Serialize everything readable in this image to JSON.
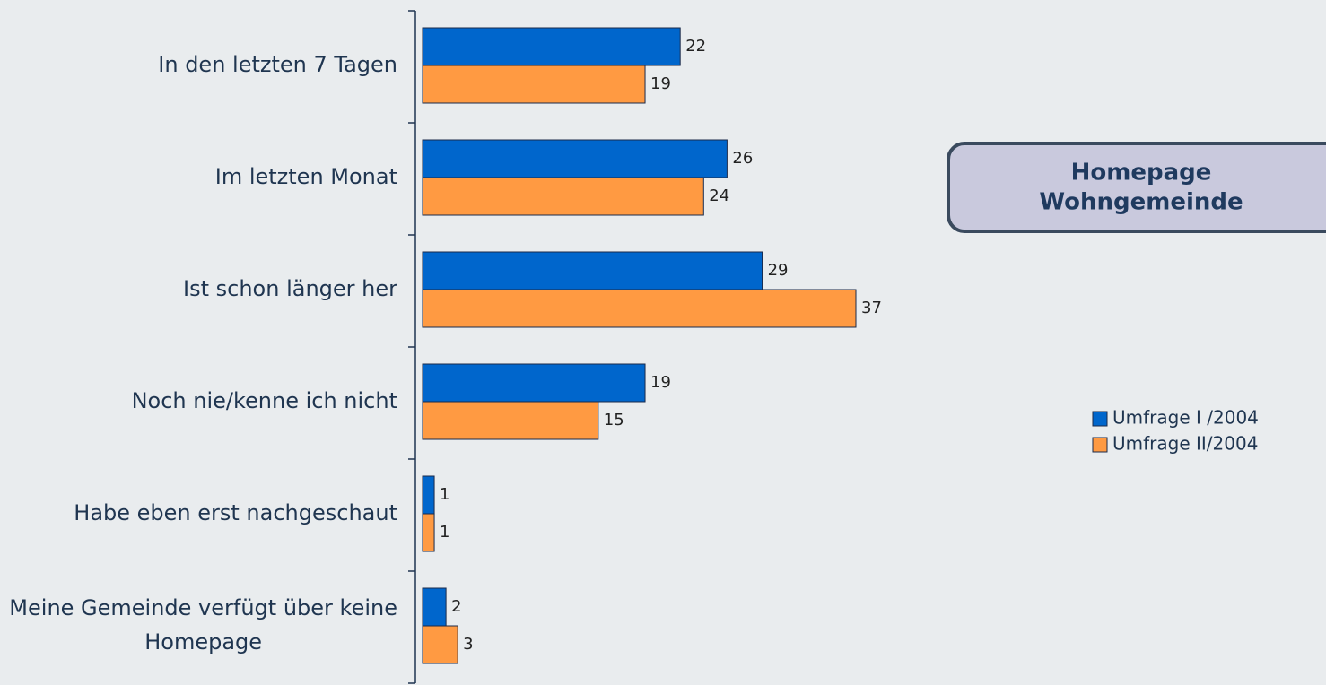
{
  "chart_data": {
    "type": "barh",
    "annotation": "Homepage Wohngemeinde",
    "categories": [
      "In den letzten 7 Tagen",
      "Im letzten Monat",
      "Ist schon länger her",
      "Noch nie/kenne ich nicht",
      "Habe eben erst nachgeschaut",
      "Meine Gemeinde verfügt über keine Homepage"
    ],
    "series": [
      {
        "name": "Umfrage I /2004",
        "color": "#0066cc",
        "values": [
          22,
          26,
          29,
          19,
          1,
          2
        ]
      },
      {
        "name": "Umfrage II/2004",
        "color": "#ff9a42",
        "values": [
          19,
          24,
          37,
          15,
          1,
          3
        ]
      }
    ],
    "legend": "right"
  }
}
